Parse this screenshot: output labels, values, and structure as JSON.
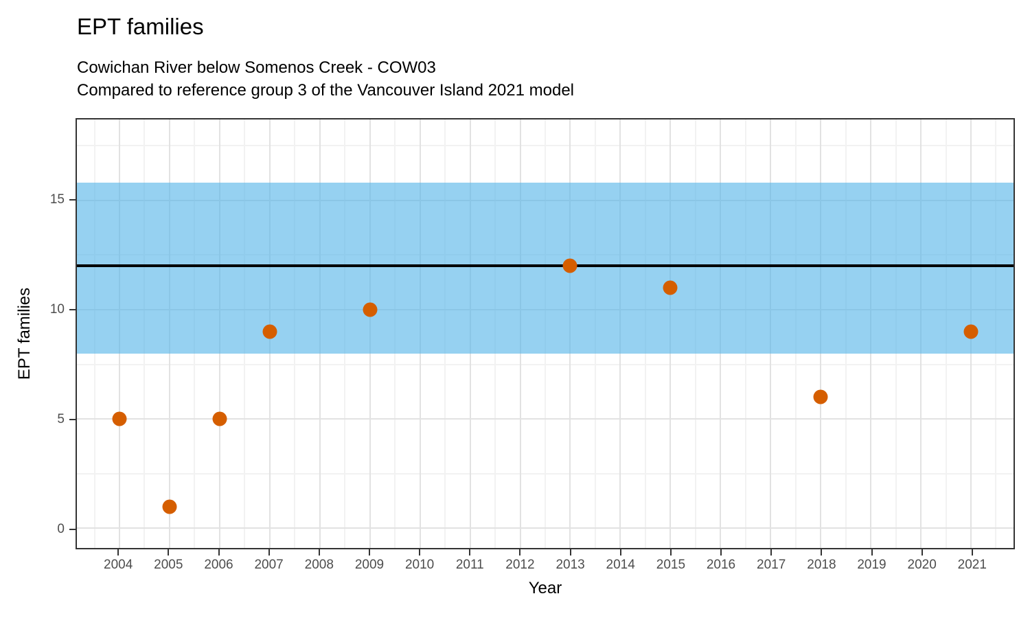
{
  "title": "EPT families",
  "subtitle_line1": "Cowichan River below Somenos Creek - COW03",
  "subtitle_line2": "Compared to reference group 3 of the Vancouver Island 2021 model",
  "chart_data": {
    "type": "scatter",
    "title": "EPT families",
    "subtitle": "Cowichan River below Somenos Creek - COW03\nCompared to reference group 3 of the Vancouver Island 2021 model",
    "xlabel": "Year",
    "ylabel": "EPT families",
    "points": [
      {
        "x": 2004,
        "y": 5
      },
      {
        "x": 2005,
        "y": 1
      },
      {
        "x": 2006,
        "y": 5
      },
      {
        "x": 2007,
        "y": 9
      },
      {
        "x": 2009,
        "y": 10
      },
      {
        "x": 2013,
        "y": 12
      },
      {
        "x": 2015,
        "y": 11
      },
      {
        "x": 2018,
        "y": 6
      },
      {
        "x": 2021,
        "y": 9
      }
    ],
    "reference_band": {
      "ymin": 8,
      "ymax": 15.8
    },
    "reference_line_y": 12,
    "x_ticks": [
      2004,
      2005,
      2006,
      2007,
      2008,
      2009,
      2010,
      2011,
      2012,
      2013,
      2014,
      2015,
      2016,
      2017,
      2018,
      2019,
      2020,
      2021
    ],
    "y_ticks": [
      0,
      5,
      10,
      15
    ],
    "y_minor": [
      2.5,
      7.5,
      12.5,
      17.5
    ],
    "x_domain": [
      2003.15,
      2021.85
    ],
    "y_domain": [
      -0.9,
      18.7
    ],
    "grid": {
      "major": true,
      "minor": true
    },
    "legend_position": "none",
    "colors": {
      "point": "#D55E00",
      "band": "#56B4E9",
      "band_opacity": 0.62,
      "reference_line": "#000000",
      "grid_major": "#E2E2E2",
      "grid_minor": "#F2F2F2",
      "panel_border": "#333333",
      "axis_tick": "#333333",
      "tick_label": "#4D4D4D",
      "text": "#000000",
      "background": "#FFFFFF"
    }
  }
}
